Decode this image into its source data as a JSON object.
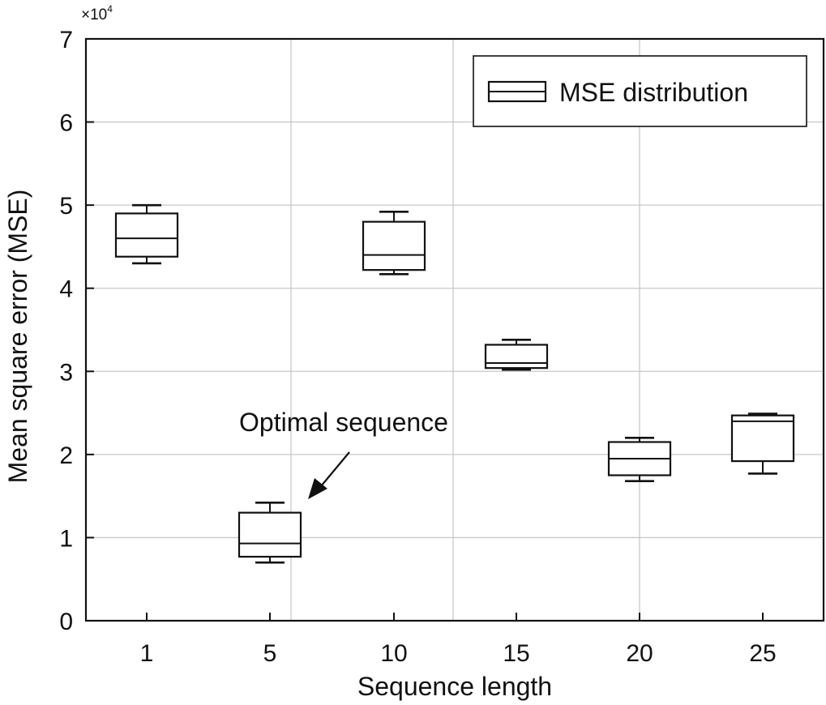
{
  "chart_data": {
    "type": "box",
    "xlabel": "Sequence length",
    "ylabel": "Mean square error (MSE)",
    "y_multiplier_label": "×10",
    "y_multiplier_exponent": "4",
    "ylim": [
      0,
      7
    ],
    "yticks": [
      "0",
      "1",
      "2",
      "3",
      "4",
      "5",
      "6",
      "7"
    ],
    "categories": [
      "1",
      "5",
      "10",
      "15",
      "20",
      "25"
    ],
    "grid": true,
    "legend": {
      "label": "MSE distribution",
      "position": "top-right"
    },
    "annotation": {
      "text": "Optimal sequence",
      "target_category": "5"
    },
    "series": [
      {
        "boxes": [
          {
            "category": "1",
            "min": 4.3,
            "q1": 4.38,
            "median": 4.6,
            "q3": 4.9,
            "max": 5.0
          },
          {
            "category": "5",
            "min": 0.7,
            "q1": 0.77,
            "median": 0.93,
            "q3": 1.3,
            "max": 1.42
          },
          {
            "category": "10",
            "min": 4.17,
            "q1": 4.22,
            "median": 4.4,
            "q3": 4.8,
            "max": 4.92
          },
          {
            "category": "15",
            "min": 3.02,
            "q1": 3.04,
            "median": 3.1,
            "q3": 3.32,
            "max": 3.38
          },
          {
            "category": "20",
            "min": 1.68,
            "q1": 1.75,
            "median": 1.95,
            "q3": 2.15,
            "max": 2.2
          },
          {
            "category": "25",
            "min": 1.77,
            "q1": 1.92,
            "median": 2.4,
            "q3": 2.47,
            "max": 2.49
          }
        ]
      }
    ]
  }
}
